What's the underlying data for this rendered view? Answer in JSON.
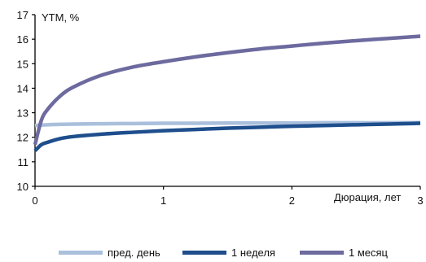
{
  "chart_data": {
    "type": "line",
    "ylabel": "YTM, %",
    "xlabel": "Дюрация, лет",
    "xlim": [
      0,
      3
    ],
    "ylim": [
      10,
      17
    ],
    "xticks": [
      "0",
      "1",
      "2",
      "3"
    ],
    "yticks": [
      "10",
      "11",
      "12",
      "13",
      "14",
      "15",
      "16",
      "17"
    ],
    "grid": false,
    "legend_position": "bottom",
    "series": [
      {
        "name": "пред. день",
        "color": "#a9bfdc",
        "x": [
          0.0,
          0.05,
          0.1,
          0.2,
          0.3,
          0.5,
          0.75,
          1.0,
          1.25,
          1.5,
          1.75,
          2.0,
          2.25,
          2.5,
          2.75,
          3.0
        ],
        "y": [
          12.48,
          12.5,
          12.51,
          12.53,
          12.54,
          12.55,
          12.56,
          12.57,
          12.57,
          12.58,
          12.58,
          12.58,
          12.59,
          12.59,
          12.59,
          12.6
        ]
      },
      {
        "name": "1 неделя",
        "color": "#1e4e8c",
        "x": [
          0.0,
          0.05,
          0.1,
          0.2,
          0.3,
          0.5,
          0.75,
          1.0,
          1.25,
          1.5,
          1.75,
          2.0,
          2.25,
          2.5,
          2.75,
          3.0
        ],
        "y": [
          11.45,
          11.7,
          11.8,
          11.95,
          12.03,
          12.12,
          12.2,
          12.27,
          12.32,
          12.37,
          12.41,
          12.45,
          12.48,
          12.51,
          12.54,
          12.57
        ]
      },
      {
        "name": "1 месяц",
        "color": "#6c6a9e",
        "x": [
          0.0,
          0.05,
          0.1,
          0.2,
          0.3,
          0.5,
          0.75,
          1.0,
          1.25,
          1.5,
          1.75,
          2.0,
          2.25,
          2.5,
          2.75,
          3.0
        ],
        "y": [
          11.7,
          12.7,
          13.15,
          13.7,
          14.05,
          14.5,
          14.85,
          15.08,
          15.28,
          15.45,
          15.6,
          15.72,
          15.84,
          15.94,
          16.03,
          16.12
        ]
      }
    ]
  }
}
